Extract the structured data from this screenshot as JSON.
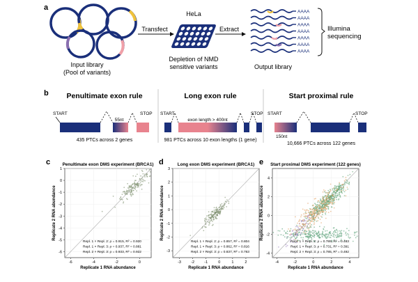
{
  "panel_a": {
    "letter": "a",
    "input_label_1": "Input library",
    "input_label_2": "(Pool of variants)",
    "arrow_transfect": "Transfect",
    "hela_label": "HeLa",
    "depletion_1": "Depletion of NMD",
    "depletion_2": "sensitive variants",
    "arrow_extract": "Extract",
    "output_label": "Output library",
    "polya": [
      "AAAA",
      "AAAA",
      "AAAA",
      "AAAA",
      "AAAA",
      "AAAA",
      "AAAA"
    ],
    "illumina_1": "Illumina",
    "illumina_2": "sequencing",
    "colors": {
      "plasmid": "#1a2f7a",
      "yellow": "#f0c33c",
      "pink": "#f0a0a8",
      "purple": "#8a6fb0"
    }
  },
  "panel_b": {
    "letter": "b",
    "rules": [
      {
        "title": "Penultimate exon rule",
        "start": "START",
        "stop": "STOP",
        "annotation": "55nt",
        "caption": "435 PTCs across 2 genes"
      },
      {
        "title": "Long exon rule",
        "start": "START",
        "stop": "STOP",
        "annotation": "exon length > 400nt",
        "caption": "981 PTCs across 10 exon lengths (1 gene)"
      },
      {
        "title": "Start proximal rule",
        "start": "START",
        "stop": "STOP",
        "annotation": "150nt",
        "caption": "10,666 PTCs across 122 genes"
      }
    ],
    "colors": {
      "exon": "#1a2f7a",
      "ptc": "#e8838e"
    }
  },
  "chart_data": [
    {
      "type": "scatter",
      "letter": "c",
      "title": "Penultimate exon DMS experiment (BRCA1)",
      "xlabel": "Replicate 1 RNA abundance",
      "ylabel": "Replicate 2 RNA abundance",
      "xlim": [
        -6.5,
        1
      ],
      "ylim": [
        -6.5,
        1
      ],
      "xticks": [
        -6,
        -4,
        -2,
        0
      ],
      "yticks": [
        -6,
        -5,
        -4,
        -3,
        -2,
        -1,
        0,
        1
      ],
      "cluster": {
        "center": [
          -0.5,
          -0.5
        ],
        "spread": 0.7,
        "n": 150,
        "extent": [
          -3.5,
          0.8
        ]
      },
      "stats": [
        "Repl. 1 × Repl. 2: ρ = 0.915, R² = 0.920",
        "Repl. 1 × Repl. 3: ρ = 0.937, R² = 0.881",
        "Repl. 2 × Repl. 3: ρ = 0.933, R² = 0.922"
      ]
    },
    {
      "type": "scatter",
      "letter": "d",
      "title": "Long exon DMS experiment (BRCA1)",
      "xlabel": "Replicate 1 RNA abundance",
      "ylabel": "Replicate 2 RNA abundance",
      "xlim": [
        -3.5,
        3
      ],
      "ylim": [
        -3.5,
        3
      ],
      "xticks": [
        -3,
        -2,
        -1,
        0,
        1,
        2
      ],
      "yticks": [
        -3,
        -2,
        -1,
        0,
        1,
        2,
        3
      ],
      "cluster": {
        "center": [
          -0.3,
          -0.3
        ],
        "spread": 0.45,
        "n": 170,
        "extent": [
          -2,
          1.2
        ]
      },
      "stats": [
        "Repl. 1 × Repl. 2: ρ = 0.857, R² = 0.804",
        "Repl. 1 × Repl. 3: ρ = 0.862, R² = 0.816",
        "Repl. 2 × Repl. 3: ρ = 0.837, R² = 0.763"
      ]
    },
    {
      "type": "scatter",
      "letter": "e",
      "title": "Start proximal DMS experiment (122 genes)",
      "xlabel": "Replicate 1 RNA abundance",
      "ylabel": "Replicate 2 RNA abundance",
      "xlim": [
        -4.5,
        5
      ],
      "ylim": [
        -4.5,
        5
      ],
      "xticks": [
        -4,
        -2,
        0,
        2,
        4
      ],
      "yticks": [
        -4,
        -2,
        0,
        2,
        4
      ],
      "clusters": [
        {
          "center": [
            1.5,
            1.5
          ],
          "spread": 1.0,
          "n": 420,
          "color": "#5aa06e"
        },
        {
          "center": [
            0.5,
            -2.0
          ],
          "spread": 1.5,
          "n": 260,
          "color": "#4f9a70",
          "flat": true
        },
        {
          "center": [
            0.5,
            0.6
          ],
          "spread": 1.3,
          "n": 260,
          "color": "#e09a5a"
        },
        {
          "center": [
            -1.5,
            -1.5
          ],
          "spread": 0.8,
          "n": 60,
          "color": "#9b7fc0"
        }
      ],
      "stats": [
        "Repl. 1 × Repl. 2: ρ = 0.789, R² = 0.483",
        "Repl. 1 × Repl. 3: ρ = 0.731, R² = 0.391",
        "Repl. 2 × Repl. 3: ρ = 0.785, R² = 0.492"
      ]
    }
  ]
}
